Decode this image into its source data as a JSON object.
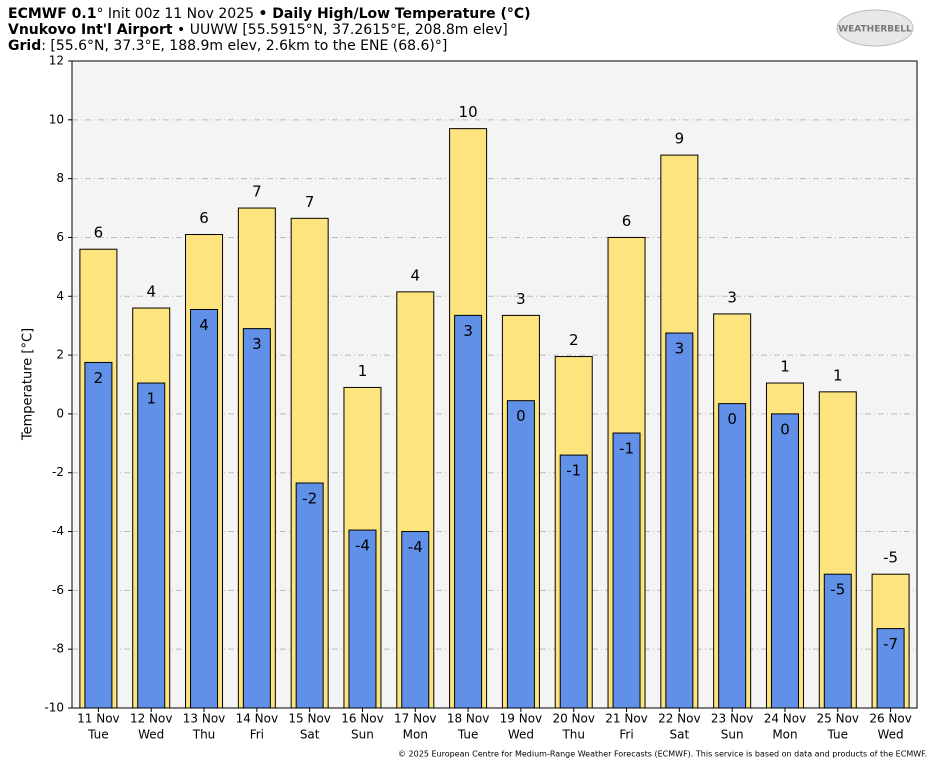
{
  "header": {
    "lines": [
      [
        {
          "text": "ECMWF 0.1",
          "bold": true
        },
        {
          "text": "° Init 00z 11 Nov 2025 ",
          "bold": false
        },
        {
          "text": "• Daily High/Low Temperature (°C)",
          "bold": true
        }
      ],
      [
        {
          "text": "Vnukovo Int'l Airport",
          "bold": true
        },
        {
          "text": " • UUWW [55.5915°N, 37.2615°E, 208.8m elev]",
          "bold": false
        }
      ],
      [
        {
          "text": "Grid",
          "bold": true
        },
        {
          "text": ": [55.6°N, 37.3°E, 188.9m elev, 2.6km to the ENE (68.6)°]",
          "bold": false
        }
      ]
    ],
    "logo": "WEATHERBELL",
    "footer": "© 2025 European Centre for Medium-Range Weather Forecasts (ECMWF). This service is based on data and products of the ECMWF."
  },
  "chart_data": {
    "type": "bar",
    "y_label": "Temperature [°C]",
    "categories": [
      [
        "11 Nov",
        "Tue"
      ],
      [
        "12 Nov",
        "Wed"
      ],
      [
        "13 Nov",
        "Thu"
      ],
      [
        "14 Nov",
        "Fri"
      ],
      [
        "15 Nov",
        "Sat"
      ],
      [
        "16 Nov",
        "Sun"
      ],
      [
        "17 Nov",
        "Mon"
      ],
      [
        "18 Nov",
        "Tue"
      ],
      [
        "19 Nov",
        "Wed"
      ],
      [
        "20 Nov",
        "Thu"
      ],
      [
        "21 Nov",
        "Fri"
      ],
      [
        "22 Nov",
        "Sat"
      ],
      [
        "23 Nov",
        "Sun"
      ],
      [
        "24 Nov",
        "Mon"
      ],
      [
        "25 Nov",
        "Tue"
      ],
      [
        "26 Nov",
        "Wed"
      ]
    ],
    "series": [
      {
        "name": "High",
        "color": "#fde47f",
        "values": [
          5.6,
          3.6,
          6.1,
          7.0,
          6.65,
          0.9,
          4.15,
          9.7,
          3.35,
          1.95,
          6.0,
          8.8,
          3.4,
          1.05,
          0.75,
          -5.45
        ],
        "value_labels": [
          "6",
          "4",
          "6",
          "7",
          "7",
          "1",
          "4",
          "10",
          "3",
          "2",
          "6",
          "9",
          "3",
          "1",
          "1",
          "-5"
        ]
      },
      {
        "name": "Low",
        "color": "#6190e8",
        "values": [
          1.75,
          1.05,
          3.55,
          2.9,
          -2.35,
          -3.95,
          -4.0,
          3.35,
          0.45,
          -1.4,
          -0.65,
          2.75,
          0.35,
          0.0,
          -5.45,
          -7.3
        ],
        "value_labels": [
          "2",
          "1",
          "4",
          "3",
          "-2",
          "-4",
          "-4",
          "3",
          "0",
          "-1",
          "-1",
          "3",
          "0",
          "0",
          "-5",
          "-7"
        ]
      }
    ],
    "ylim": [
      -10,
      12
    ],
    "yticks": [
      -10,
      -8,
      -6,
      -4,
      -2,
      0,
      2,
      4,
      6,
      8,
      10,
      12
    ],
    "grid": true
  }
}
